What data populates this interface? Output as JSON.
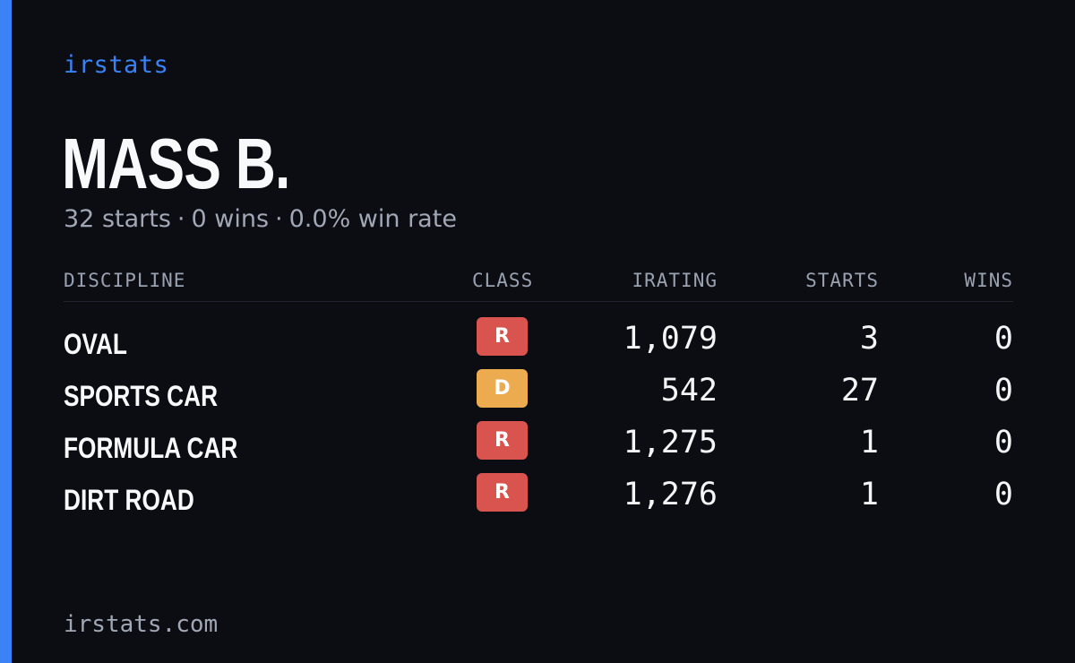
{
  "brand": "irstats",
  "driver": {
    "name": "MASS B.",
    "starts_text": "32 starts",
    "wins_text": "0 wins",
    "win_rate_text": "0.0% win rate",
    "separator": "·"
  },
  "table": {
    "headers": {
      "discipline": "DISCIPLINE",
      "class": "CLASS",
      "irating": "IRATING",
      "starts": "STARTS",
      "wins": "WINS"
    },
    "rows": [
      {
        "discipline": "OVAL",
        "class": "R",
        "class_color": "#d9534f",
        "irating": "1,079",
        "starts": "3",
        "wins": "0"
      },
      {
        "discipline": "SPORTS CAR",
        "class": "D",
        "class_color": "#ecab4f",
        "irating": "542",
        "starts": "27",
        "wins": "0"
      },
      {
        "discipline": "FORMULA CAR",
        "class": "R",
        "class_color": "#d9534f",
        "irating": "1,275",
        "starts": "1",
        "wins": "0"
      },
      {
        "discipline": "DIRT ROAD",
        "class": "R",
        "class_color": "#d9534f",
        "irating": "1,276",
        "starts": "1",
        "wins": "0"
      }
    ]
  },
  "footer": "irstats.com",
  "colors": {
    "accent": "#3b82f6",
    "background": "#0b0d13"
  }
}
